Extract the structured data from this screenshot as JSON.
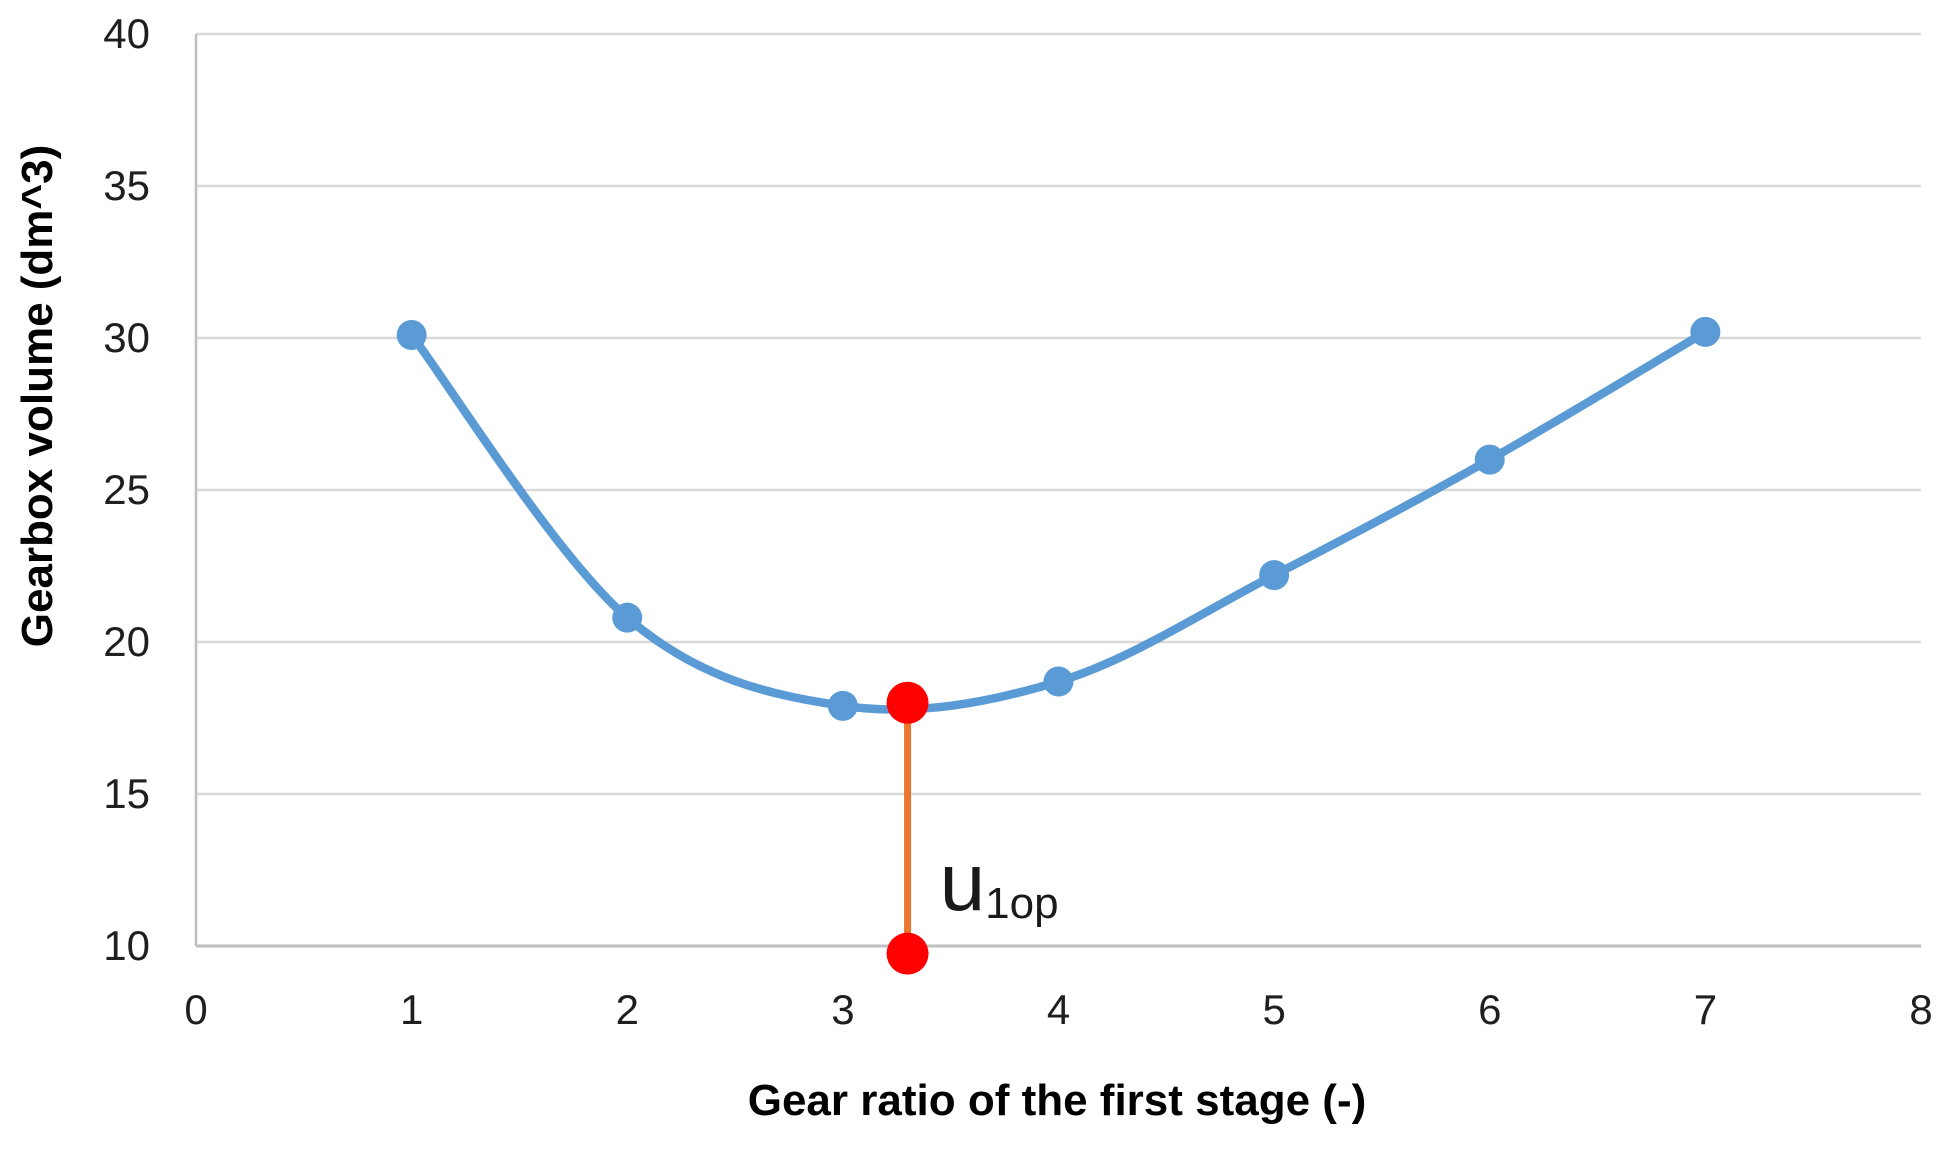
{
  "chart_data": {
    "type": "line",
    "title": "",
    "xlabel": "Gear ratio of the first stage (-)",
    "ylabel": "Gearbox volume (dm^3)",
    "xlim": [
      0,
      8
    ],
    "ylim": [
      10,
      40
    ],
    "x_ticks": [
      0,
      1,
      2,
      3,
      4,
      5,
      6,
      7,
      8
    ],
    "y_ticks": [
      40,
      35,
      30,
      25,
      20,
      15,
      10
    ],
    "grid": "horizontal",
    "legend": "none",
    "series": [
      {
        "x": [
          1,
          2,
          3,
          4,
          5,
          6,
          7
        ],
        "y": [
          30.1,
          20.8,
          17.9,
          18.7,
          22.2,
          26.0,
          30.2
        ],
        "color": "#5B9BD5",
        "marker": "circle",
        "smooth": true
      }
    ],
    "annotation": {
      "x": 3.3,
      "y_top": 18.0,
      "y_bottom": 9.75,
      "label_main": "u",
      "label_sub": "1op",
      "line_color": "#E8762C",
      "point_color": "#FF0000"
    },
    "colors": {
      "gridline": "#D9D9D9",
      "axis": "#BFBFBF",
      "text": "#1F1F1F"
    }
  }
}
